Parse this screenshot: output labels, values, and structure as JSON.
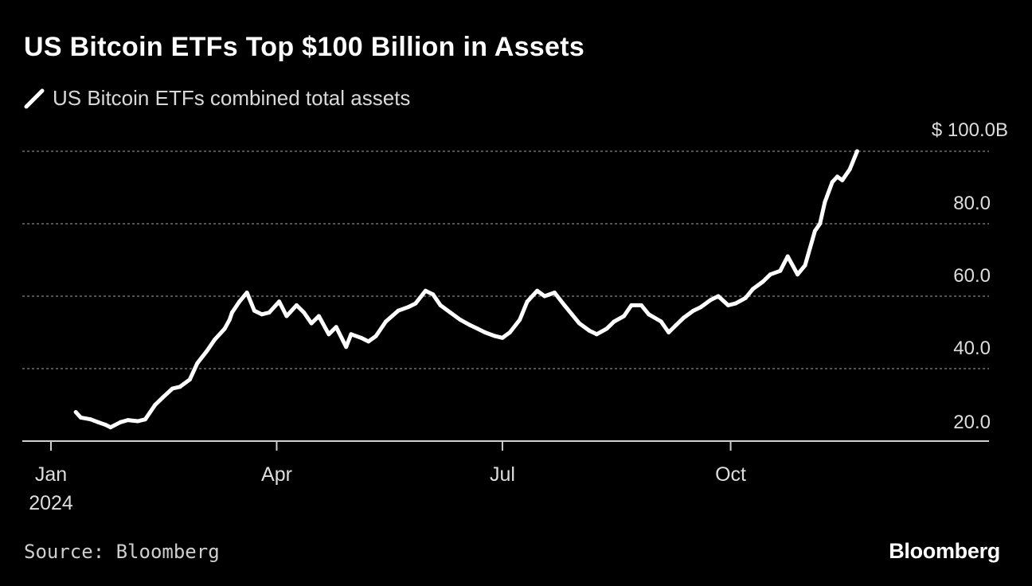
{
  "title": "US Bitcoin ETFs Top $100 Billion in Assets",
  "legend": {
    "label": "US Bitcoin ETFs combined total assets",
    "color": "#ffffff"
  },
  "source": "Source: Bloomberg",
  "brand": "Bloomberg",
  "colors": {
    "background": "#000000",
    "line": "#ffffff",
    "grid": "#6e6e6e",
    "tick_text": "#dddddd"
  },
  "chart_data": {
    "type": "line",
    "x_axis": {
      "type": "date",
      "range": [
        "2024-01-01",
        "2024-12-31"
      ],
      "ticks": [
        {
          "date": "2024-01-01",
          "label": "Jan",
          "sublabel": "2024"
        },
        {
          "date": "2024-04-01",
          "label": "Apr"
        },
        {
          "date": "2024-07-01",
          "label": "Jul"
        },
        {
          "date": "2024-10-01",
          "label": "Oct"
        }
      ]
    },
    "y_axis": {
      "range": [
        20,
        100
      ],
      "ticks": [
        {
          "value": 20,
          "label": "20.0"
        },
        {
          "value": 40,
          "label": "40.0"
        },
        {
          "value": 60,
          "label": "60.0"
        },
        {
          "value": 80,
          "label": "80.0"
        },
        {
          "value": 100,
          "label": "$ 100.0B"
        }
      ],
      "grid": true,
      "position": "right"
    },
    "series": [
      {
        "name": "US Bitcoin ETFs combined total assets",
        "x": [
          "2024-01-11",
          "2024-01-13",
          "2024-01-17",
          "2024-01-20",
          "2024-01-23",
          "2024-01-25",
          "2024-01-29",
          "2024-02-01",
          "2024-02-05",
          "2024-02-08",
          "2024-02-12",
          "2024-02-15",
          "2024-02-19",
          "2024-02-22",
          "2024-02-26",
          "2024-02-29",
          "2024-03-04",
          "2024-03-07",
          "2024-03-11",
          "2024-03-13",
          "2024-03-14",
          "2024-03-17",
          "2024-03-20",
          "2024-03-23",
          "2024-03-26",
          "2024-03-29",
          "2024-04-02",
          "2024-04-05",
          "2024-04-09",
          "2024-04-12",
          "2024-04-15",
          "2024-04-18",
          "2024-04-22",
          "2024-04-25",
          "2024-04-29",
          "2024-05-01",
          "2024-05-05",
          "2024-05-08",
          "2024-05-11",
          "2024-05-15",
          "2024-05-20",
          "2024-05-24",
          "2024-05-27",
          "2024-05-31",
          "2024-06-03",
          "2024-06-06",
          "2024-06-10",
          "2024-06-14",
          "2024-06-18",
          "2024-06-21",
          "2024-06-24",
          "2024-06-28",
          "2024-07-01",
          "2024-07-04",
          "2024-07-08",
          "2024-07-11",
          "2024-07-15",
          "2024-07-18",
          "2024-07-22",
          "2024-07-26",
          "2024-07-29",
          "2024-08-01",
          "2024-08-05",
          "2024-08-08",
          "2024-08-12",
          "2024-08-15",
          "2024-08-19",
          "2024-08-22",
          "2024-08-26",
          "2024-08-29",
          "2024-09-03",
          "2024-09-06",
          "2024-09-09",
          "2024-09-12",
          "2024-09-16",
          "2024-09-19",
          "2024-09-23",
          "2024-09-26",
          "2024-09-30",
          "2024-10-03",
          "2024-10-07",
          "2024-10-10",
          "2024-10-14",
          "2024-10-17",
          "2024-10-21",
          "2024-10-24",
          "2024-10-28",
          "2024-10-31",
          "2024-11-04",
          "2024-11-06",
          "2024-11-08",
          "2024-11-11",
          "2024-11-13",
          "2024-11-15",
          "2024-11-18",
          "2024-11-21"
        ],
        "values": [
          28.0,
          26.5,
          26.0,
          25.2,
          24.5,
          23.8,
          25.2,
          25.8,
          25.5,
          26.0,
          30.0,
          32.0,
          34.5,
          35.0,
          37.0,
          41.5,
          45.0,
          48.0,
          51.0,
          53.5,
          55.5,
          58.5,
          61.0,
          56.0,
          55.0,
          55.5,
          58.5,
          54.5,
          57.5,
          55.5,
          52.5,
          54.5,
          49.5,
          51.5,
          46.0,
          49.5,
          48.5,
          47.5,
          49.0,
          53.0,
          56.0,
          57.0,
          58.0,
          61.5,
          60.5,
          57.5,
          55.5,
          53.5,
          52.0,
          51.0,
          50.0,
          49.0,
          48.5,
          50.0,
          53.5,
          58.5,
          61.5,
          60.0,
          61.0,
          57.5,
          55.0,
          52.5,
          50.5,
          49.5,
          51.0,
          53.0,
          54.5,
          57.5,
          57.5,
          55.0,
          53.0,
          50.0,
          52.0,
          54.0,
          56.0,
          57.0,
          59.0,
          60.0,
          57.5,
          58.0,
          59.5,
          62.0,
          64.0,
          66.0,
          67.0,
          71.0,
          66.0,
          68.5,
          78.0,
          80.0,
          86.0,
          91.5,
          93.0,
          92.0,
          95.0,
          100.0
        ]
      }
    ]
  }
}
